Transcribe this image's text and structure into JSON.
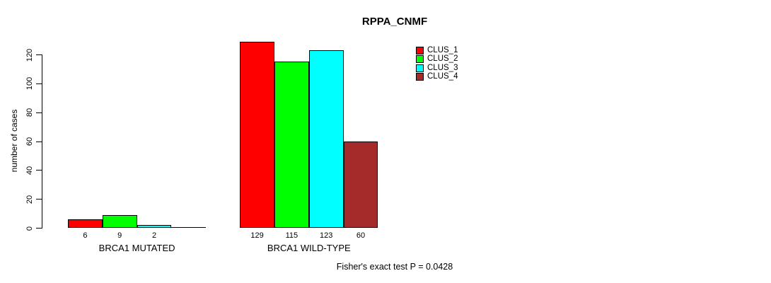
{
  "chart_data": {
    "type": "bar",
    "title": "RPPA_CNMF",
    "ylabel": "number of cases",
    "xlabel": "",
    "ylim": [
      0,
      120
    ],
    "yticks": [
      0,
      20,
      40,
      60,
      80,
      100,
      120
    ],
    "grid": false,
    "legend_position": "top-right",
    "categories": [
      "BRCA1 MUTATED",
      "BRCA1 WILD-TYPE"
    ],
    "series": [
      {
        "name": "CLUS_1",
        "color": "#ff0000",
        "values": [
          6,
          129
        ]
      },
      {
        "name": "CLUS_2",
        "color": "#00ff00",
        "values": [
          9,
          115
        ]
      },
      {
        "name": "CLUS_3",
        "color": "#00ffff",
        "values": [
          2,
          123
        ]
      },
      {
        "name": "CLUS_4",
        "color": "#a52a2a",
        "values": [
          0,
          60
        ]
      }
    ],
    "bar_value_labels": {
      "BRCA1 MUTATED": [
        "6",
        "9",
        "2",
        ""
      ],
      "BRCA1 WILD-TYPE": [
        "129",
        "115",
        "123",
        "60"
      ]
    },
    "footer": "Fisher's exact test P = 0.0428",
    "axis_color": "#000000",
    "background_color": "#ffffff"
  }
}
